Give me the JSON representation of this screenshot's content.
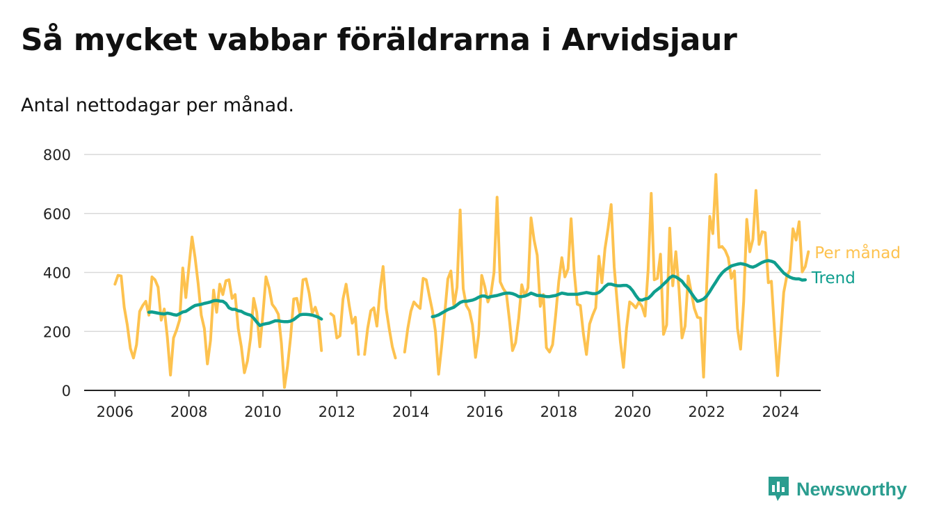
{
  "header": {
    "title": "Så mycket vabbar föräldrarna i Arvidsjaur",
    "subtitle": "Antal nettodagar per månad."
  },
  "brand": {
    "name": "Newsworthy",
    "icon": "newsworthy-logo-icon"
  },
  "colors": {
    "monthly": "#fdc24f",
    "trend": "#0f9e8e",
    "grid": "#d9d9d9",
    "axis": "#222222",
    "brand": "#2a9d8f"
  },
  "chart_data": {
    "type": "line",
    "title": "Så mycket vabbar föräldrarna i Arvidsjaur",
    "subtitle": "Antal nettodagar per månad.",
    "xlabel": "",
    "ylabel": "",
    "xlim": [
      "2005-03",
      "2025-02"
    ],
    "ylim": [
      0,
      800
    ],
    "y_ticks": [
      0,
      200,
      400,
      600,
      800
    ],
    "x_ticks": [
      "2006",
      "2008",
      "2010",
      "2012",
      "2014",
      "2016",
      "2018",
      "2020",
      "2022",
      "2024"
    ],
    "grid": true,
    "legend": "inline-right",
    "series": [
      {
        "name": "Per månad",
        "color": "#fdc24f",
        "start": "2006-01",
        "values": [
          360,
          390,
          388,
          282,
          222,
          142,
          110,
          155,
          268,
          288,
          302,
          255,
          385,
          375,
          350,
          238,
          276,
          180,
          52,
          178,
          205,
          240,
          415,
          315,
          420,
          520,
          450,
          362,
          255,
          210,
          90,
          170,
          340,
          265,
          360,
          325,
          372,
          375,
          312,
          325,
          210,
          148,
          60,
          100,
          178,
          312,
          265,
          148,
          258,
          385,
          348,
          292,
          278,
          258,
          160,
          10,
          82,
          182,
          310,
          312,
          260,
          375,
          378,
          330,
          262,
          282,
          248,
          135,
          null,
          null,
          260,
          252,
          178,
          185,
          310,
          360,
          288,
          228,
          248,
          122,
          null,
          122,
          210,
          270,
          280,
          218,
          340,
          420,
          278,
          208,
          148,
          110,
          null,
          null,
          130,
          210,
          268,
          300,
          288,
          278,
          380,
          375,
          320,
          270,
          200,
          55,
          150,
          260,
          378,
          405,
          285,
          350,
          612,
          345,
          288,
          270,
          222,
          112,
          190,
          390,
          352,
          300,
          328,
          400,
          655,
          368,
          345,
          330,
          238,
          135,
          162,
          245,
          358,
          320,
          348,
          585,
          510,
          458,
          285,
          325,
          145,
          130,
          155,
          255,
          370,
          450,
          385,
          412,
          582,
          405,
          292,
          288,
          192,
          122,
          225,
          255,
          280,
          455,
          365,
          480,
          550,
          630,
          418,
          292,
          165,
          78,
          210,
          300,
          292,
          280,
          300,
          285,
          252,
          410,
          668,
          375,
          380,
          462,
          190,
          222,
          550,
          355,
          470,
          345,
          178,
          218,
          388,
          332,
          278,
          248,
          245,
          45,
          355,
          590,
          532,
          732,
          485,
          488,
          475,
          450,
          380,
          405,
          210,
          140,
          300,
          580,
          470,
          512,
          678,
          495,
          538,
          535,
          365,
          370,
          205,
          50,
          185,
          332,
          388,
          408,
          548,
          510,
          572,
          402,
          420,
          470
        ]
      },
      {
        "name": "Trend",
        "color": "#0f9e8e",
        "start": "2006-01",
        "values": [
          null,
          null,
          null,
          null,
          null,
          null,
          null,
          null,
          null,
          null,
          null,
          265,
          266,
          264,
          262,
          260,
          259,
          262,
          260,
          257,
          255,
          260,
          266,
          268,
          275,
          282,
          288,
          290,
          292,
          295,
          297,
          300,
          304,
          305,
          303,
          302,
          295,
          280,
          275,
          275,
          270,
          268,
          262,
          258,
          255,
          245,
          232,
          220,
          224,
          226,
          228,
          232,
          236,
          236,
          234,
          233,
          233,
          235,
          240,
          248,
          256,
          258,
          258,
          257,
          255,
          252,
          248,
          242,
          null,
          null,
          null,
          null,
          null,
          null,
          null,
          null,
          null,
          null,
          null,
          null,
          null,
          null,
          null,
          null,
          null,
          null,
          null,
          null,
          null,
          null,
          null,
          null,
          null,
          null,
          null,
          null,
          null,
          null,
          null,
          null,
          null,
          null,
          null,
          250,
          252,
          256,
          262,
          268,
          274,
          278,
          282,
          290,
          298,
          302,
          302,
          304,
          306,
          310,
          316,
          320,
          320,
          315,
          318,
          320,
          322,
          325,
          328,
          330,
          330,
          328,
          324,
          318,
          318,
          320,
          324,
          330,
          326,
          322,
          322,
          320,
          318,
          318,
          320,
          322,
          326,
          330,
          328,
          326,
          326,
          326,
          326,
          328,
          330,
          332,
          330,
          328,
          328,
          332,
          340,
          352,
          360,
          360,
          357,
          355,
          355,
          356,
          356,
          350,
          338,
          322,
          308,
          306,
          310,
          312,
          322,
          334,
          342,
          350,
          360,
          370,
          382,
          388,
          385,
          378,
          370,
          356,
          345,
          330,
          315,
          302,
          305,
          310,
          320,
          335,
          352,
          368,
          385,
          398,
          408,
          415,
          422,
          425,
          428,
          430,
          428,
          425,
          420,
          418,
          422,
          428,
          434,
          438,
          440,
          438,
          434,
          422,
          410,
          398,
          390,
          384,
          380,
          378,
          378,
          374,
          375
        ]
      }
    ]
  }
}
